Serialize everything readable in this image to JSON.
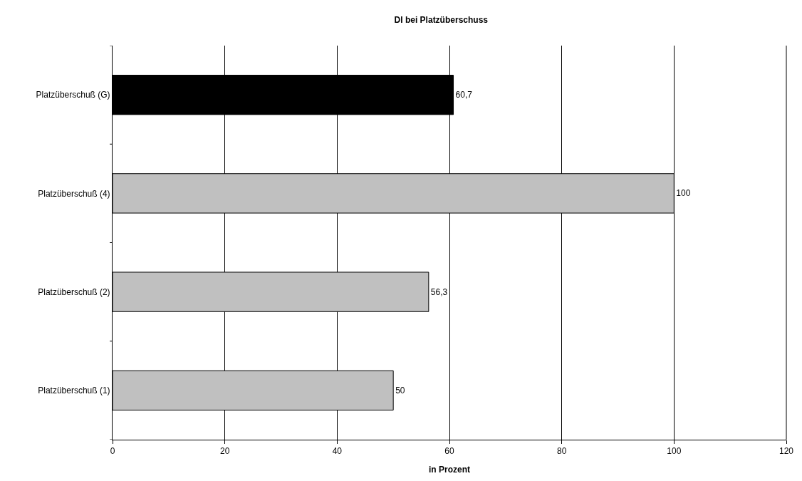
{
  "chart_data": {
    "type": "bar",
    "orientation": "horizontal",
    "title": "DI bei Platzüberschuss",
    "xlabel": "in Prozent",
    "categories": [
      "Platzüberschuß (G)",
      "Platzüberschuß (4)",
      "Platzüberschuß (2)",
      "Platzüberschuß (1)"
    ],
    "values": [
      60.7,
      100,
      56.3,
      50
    ],
    "colors": [
      "#000000",
      "#c0c0c0",
      "#c0c0c0",
      "#c0c0c0"
    ],
    "value_labels": [
      "60,7",
      "100",
      "56,3",
      "50"
    ],
    "xlim": [
      0,
      120
    ],
    "xticks": [
      0,
      20,
      40,
      60,
      80,
      100,
      120
    ],
    "grid": "x"
  }
}
